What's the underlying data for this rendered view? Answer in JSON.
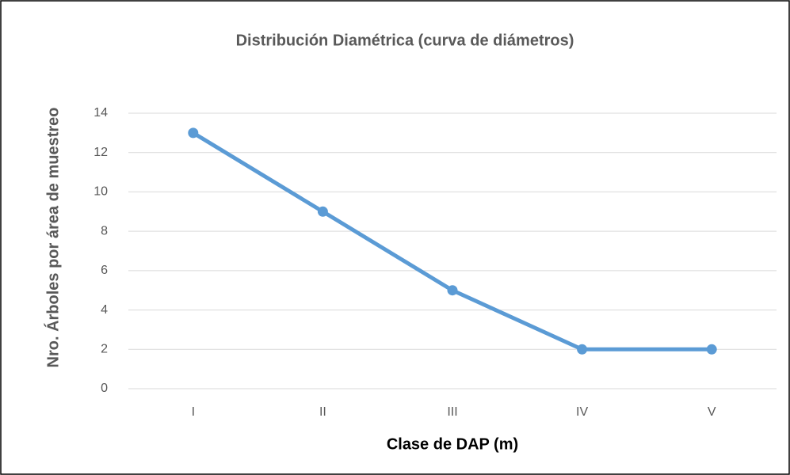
{
  "chart_data": {
    "type": "line",
    "title": "Distribución Diamétrica (curva de diámetros)",
    "x_label": "Clase de DAP (m)",
    "y_label": "Nro. Árboles por área de muestreo",
    "categories": [
      "I",
      "II",
      "III",
      "IV",
      "V"
    ],
    "values": [
      13,
      9,
      5,
      2,
      2
    ],
    "color": "#5b9bd5",
    "ylim": [
      0,
      14
    ],
    "yticks": [
      0,
      2,
      4,
      6,
      8,
      10,
      12,
      14
    ],
    "grid": true
  }
}
